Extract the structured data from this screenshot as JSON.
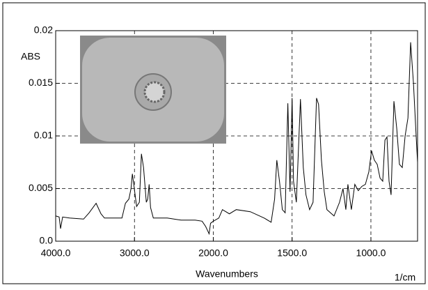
{
  "chart_data": {
    "type": "line",
    "y_label": "ABS",
    "x_label": "Wavenumbers",
    "x_unit": "1/cm",
    "x_compression": {
      "above": 2000,
      "factor": 0.5
    },
    "xlim": [
      4000,
      704
    ],
    "ylim": [
      0,
      0.02
    ],
    "xticks": [
      {
        "value": 4000,
        "label": "4000.0"
      },
      {
        "value": 3000,
        "label": "3000.0"
      },
      {
        "value": 2000,
        "label": "2000.0"
      },
      {
        "value": 1500,
        "label": "1500.0"
      },
      {
        "value": 1000,
        "label": "1000.0"
      }
    ],
    "yticks": [
      {
        "value": 0,
        "label": "0.0"
      },
      0.005,
      0.01,
      0.015,
      0.02
    ],
    "grid": true,
    "series": [
      {
        "color": "#000000",
        "x": [
          4000,
          3956,
          3938,
          3912,
          3823,
          3646,
          3575,
          3487,
          3425,
          3381,
          3159,
          3115,
          3071,
          3044,
          3027,
          3009,
          2973,
          2938,
          2912,
          2885,
          2850,
          2832,
          2814,
          2796,
          2761,
          2584,
          2407,
          2230,
          2142,
          2097,
          2053,
          2035,
          2000,
          1965,
          1942,
          1898,
          1854,
          1765,
          1677,
          1633,
          1611,
          1597,
          1580,
          1562,
          1544,
          1527,
          1513,
          1500,
          1491,
          1473,
          1447,
          1429,
          1412,
          1389,
          1367,
          1345,
          1332,
          1314,
          1296,
          1279,
          1234,
          1199,
          1177,
          1159,
          1146,
          1124,
          1102,
          1080,
          1058,
          1035,
          1013,
          996,
          978,
          960,
          942,
          925,
          911,
          898,
          885,
          872,
          854,
          836,
          819,
          801,
          783,
          765,
          748,
          730,
          712,
          704
        ],
        "values": [
          0.0024,
          0.0023,
          0.0012,
          0.0023,
          0.0022,
          0.0021,
          0.0027,
          0.0036,
          0.0026,
          0.0022,
          0.0022,
          0.0036,
          0.004,
          0.005,
          0.0064,
          0.0054,
          0.0033,
          0.0037,
          0.0083,
          0.007,
          0.0037,
          0.004,
          0.0054,
          0.0032,
          0.0022,
          0.0022,
          0.002,
          0.002,
          0.0019,
          0.0014,
          0.0007,
          0.0017,
          0.0019,
          0.0022,
          0.003,
          0.0026,
          0.003,
          0.0028,
          0.0022,
          0.0018,
          0.004,
          0.0077,
          0.0057,
          0.003,
          0.0027,
          0.0131,
          0.0047,
          0.0136,
          0.0057,
          0.0037,
          0.0135,
          0.007,
          0.0044,
          0.003,
          0.0037,
          0.0136,
          0.013,
          0.0077,
          0.0047,
          0.003,
          0.0024,
          0.0037,
          0.005,
          0.003,
          0.0054,
          0.003,
          0.0054,
          0.0048,
          0.0052,
          0.0054,
          0.0066,
          0.0086,
          0.0077,
          0.0073,
          0.006,
          0.0057,
          0.0096,
          0.0099,
          0.0057,
          0.0044,
          0.0133,
          0.0107,
          0.0073,
          0.007,
          0.01,
          0.0117,
          0.0189,
          0.015,
          0.0097,
          0.0075
        ]
      }
    ]
  }
}
